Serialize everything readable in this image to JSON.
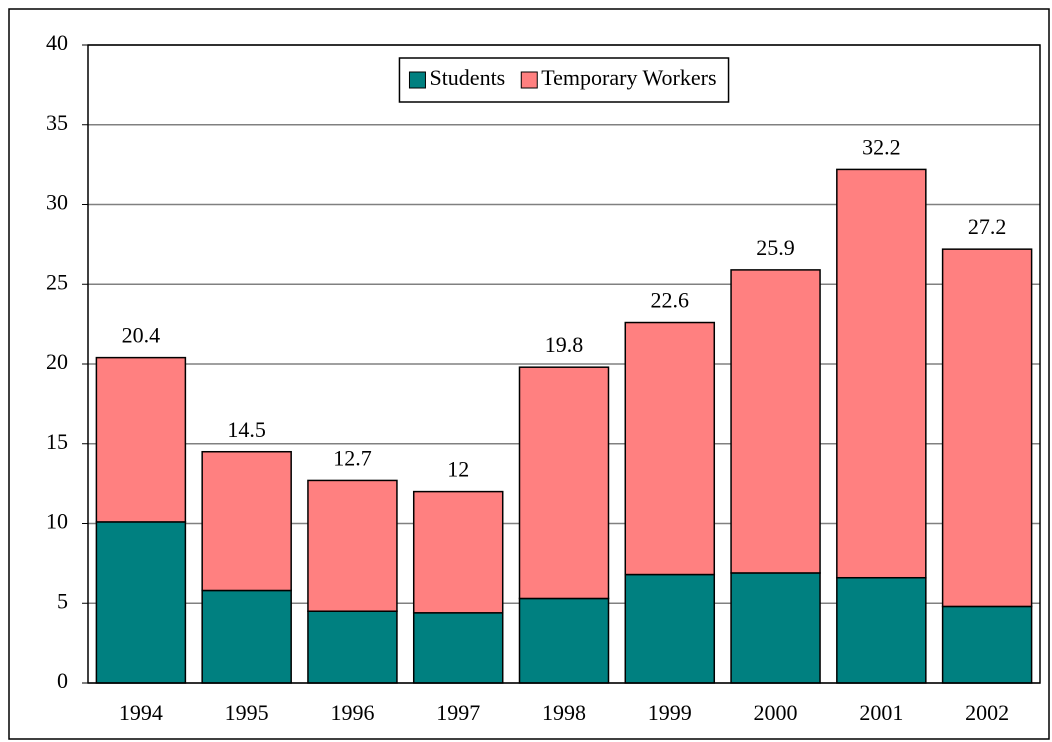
{
  "chart_data": {
    "type": "stacked_bar",
    "categories": [
      "1994",
      "1995",
      "1996",
      "1997",
      "1998",
      "1999",
      "2000",
      "2001",
      "2002"
    ],
    "series": [
      {
        "name": "Students",
        "color": "#008080",
        "values": [
          10.1,
          5.8,
          4.5,
          4.4,
          5.3,
          6.8,
          6.9,
          6.6,
          4.8
        ]
      },
      {
        "name": "Temporary Workers",
        "color": "#ff8080",
        "values": [
          10.3,
          8.7,
          8.2,
          7.6,
          14.5,
          15.8,
          19.0,
          25.6,
          22.4
        ]
      }
    ],
    "totals": [
      "20.4",
      "14.5",
      "12.7",
      "12",
      "19.8",
      "22.6",
      "25.9",
      "32.2",
      "27.2"
    ],
    "ylim": [
      0,
      40
    ],
    "yticks": [
      0,
      5,
      10,
      15,
      20,
      25,
      30,
      35,
      40
    ],
    "grid": true,
    "legend": "top"
  }
}
